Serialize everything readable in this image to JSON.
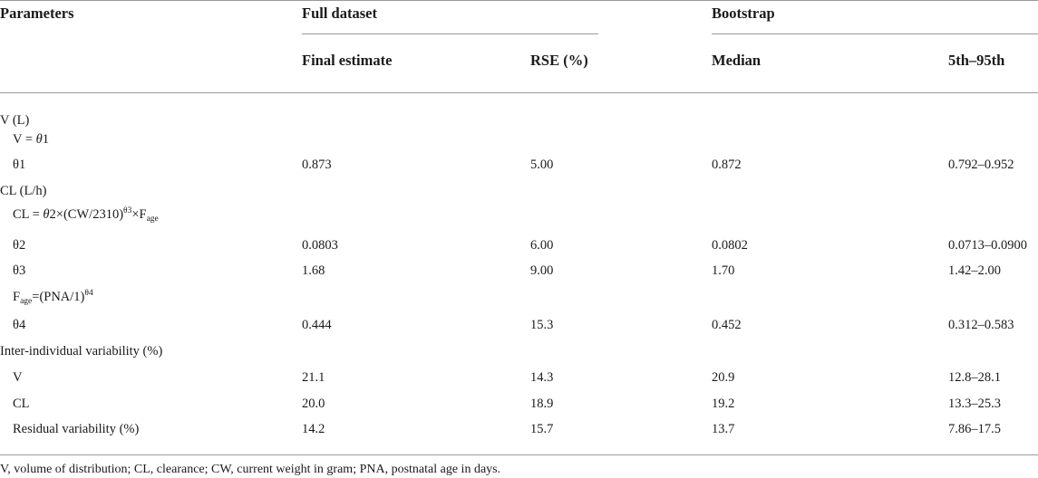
{
  "header": {
    "parameters": "Parameters",
    "full_dataset": "Full dataset",
    "bootstrap": "Bootstrap",
    "final_estimate": "Final estimate",
    "rse": "RSE (%)",
    "median": "Median",
    "percentile": "5th–95th"
  },
  "rows": {
    "v_section": "V (L)",
    "v_eq_prefix": "V = ",
    "v_eq_theta": "θ",
    "v_eq_num": "1",
    "theta1": {
      "label": "θ1",
      "final": "0.873",
      "rse": "5.00",
      "median": "0.872",
      "pct": "0.792–0.952"
    },
    "cl_section": "CL (L/h)",
    "cl_eq": {
      "a": "CL = ",
      "theta": "θ",
      "b": "2×(CW/2310)",
      "sup": "θ3",
      "c": "×F",
      "sub": "age"
    },
    "theta2": {
      "label": "θ2",
      "final": "0.0803",
      "rse": "6.00",
      "median": "0.0802",
      "pct": "0.0713–0.0900"
    },
    "theta3": {
      "label": "θ3",
      "final": "1.68",
      "rse": "9.00",
      "median": "1.70",
      "pct": "1.42–2.00"
    },
    "fage_eq": {
      "a": "F",
      "sub": "age",
      "b": "=(PNA/1)",
      "sup": "θ4"
    },
    "theta4": {
      "label": "θ4",
      "final": "0.444",
      "rse": "15.3",
      "median": "0.452",
      "pct": "0.312–0.583"
    },
    "iiv_section": "Inter-individual variability (%)",
    "iiv_v": {
      "label": "V",
      "final": "21.1",
      "rse": "14.3",
      "median": "20.9",
      "pct": "12.8–28.1"
    },
    "iiv_cl": {
      "label": "CL",
      "final": "20.0",
      "rse": "18.9",
      "median": "19.2",
      "pct": "13.3–25.3"
    },
    "residual": {
      "label": "Residual variability (%)",
      "final": "14.2",
      "rse": "15.7",
      "median": "13.7",
      "pct": "7.86–17.5"
    }
  },
  "footnote": "V, volume of distribution; CL, clearance; CW, current weight in gram; PNA, postnatal age in days."
}
